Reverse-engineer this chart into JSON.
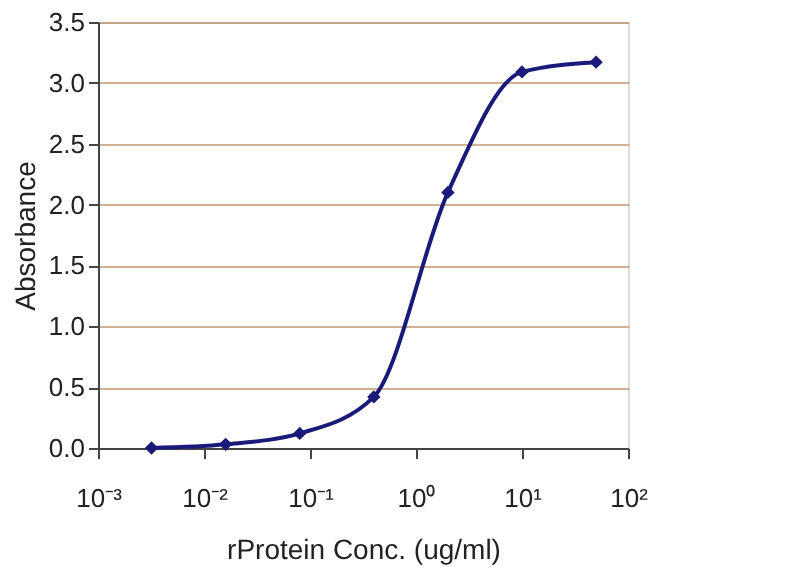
{
  "chart_data": {
    "type": "line",
    "xlabel": "rProtein Conc. (ug/ml)",
    "ylabel": "Absorbance",
    "x": [
      0.0032,
      0.016,
      0.08,
      0.4,
      2,
      10,
      50
    ],
    "series": [
      {
        "color": "#1a1a7a",
        "values": [
          0.0,
          0.03,
          0.12,
          0.42,
          2.1,
          3.09,
          3.17
        ]
      }
    ],
    "log": "x",
    "xlim": [
      0.001,
      100
    ],
    "xticks": [
      {
        "value": 0.001,
        "label": "10⁻³"
      },
      {
        "value": 0.01,
        "label": "10⁻²"
      },
      {
        "value": 0.1,
        "label": "10⁻¹"
      },
      {
        "value": 1,
        "label": "10⁰"
      },
      {
        "value": 10,
        "label": "10¹"
      },
      {
        "value": 100,
        "label": "10²"
      }
    ],
    "ylim": [
      0,
      3.5
    ],
    "yticks": [
      {
        "value": 0,
        "label": "0.0"
      },
      {
        "value": 0.5,
        "label": "0.5"
      },
      {
        "value": 1,
        "label": "1.0"
      },
      {
        "value": 1.5,
        "label": "1.5"
      },
      {
        "value": 2,
        "label": "2.0"
      },
      {
        "value": 2.5,
        "label": "2.5"
      },
      {
        "value": 3,
        "label": "3.0"
      },
      {
        "value": 3.5,
        "label": "3.5"
      }
    ],
    "grid": "y",
    "marker": "diamond",
    "line_style": "solid",
    "legend": false
  }
}
